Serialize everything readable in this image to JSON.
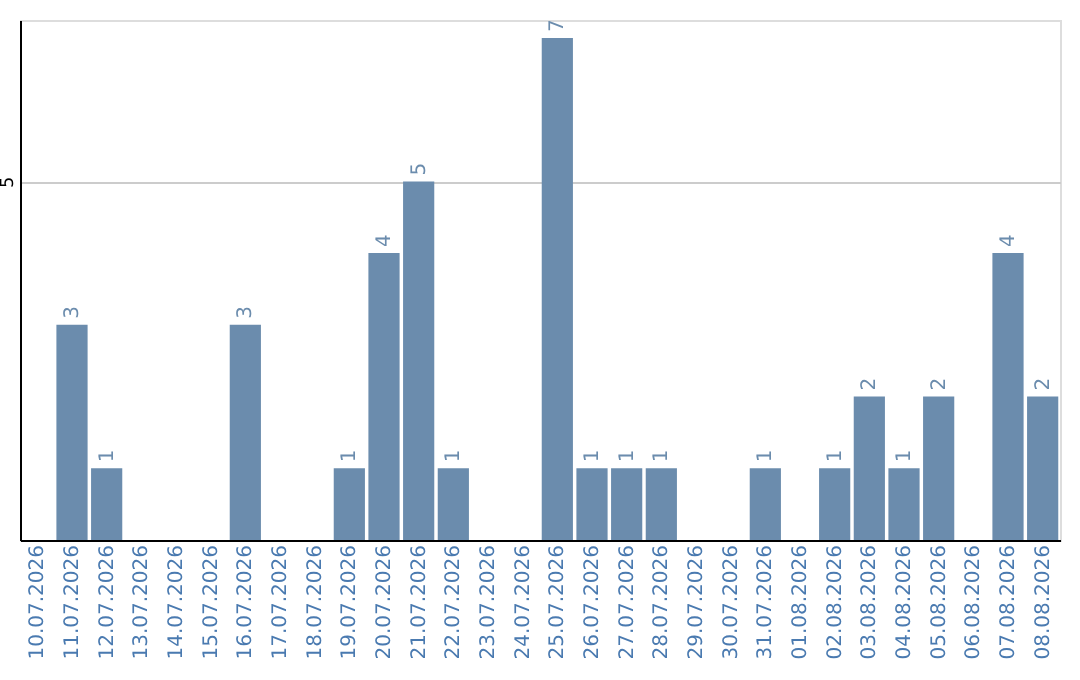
{
  "chart_data": {
    "type": "bar",
    "categories": [
      "10.07.2026",
      "11.07.2026",
      "12.07.2026",
      "13.07.2026",
      "14.07.2026",
      "15.07.2026",
      "16.07.2026",
      "17.07.2026",
      "18.07.2026",
      "19.07.2026",
      "20.07.2026",
      "21.07.2026",
      "22.07.2026",
      "23.07.2026",
      "24.07.2026",
      "25.07.2026",
      "26.07.2026",
      "27.07.2026",
      "28.07.2026",
      "29.07.2026",
      "30.07.2026",
      "31.07.2026",
      "01.08.2026",
      "02.08.2026",
      "03.08.2026",
      "04.08.2026",
      "05.08.2026",
      "06.08.2026",
      "07.08.2026",
      "08.08.2026"
    ],
    "values": [
      0,
      3,
      1,
      0,
      0,
      0,
      3,
      0,
      0,
      1,
      4,
      5,
      1,
      0,
      0,
      7,
      1,
      1,
      1,
      0,
      0,
      1,
      0,
      1,
      2,
      1,
      2,
      0,
      4,
      2
    ],
    "value_labels": [
      null,
      "3",
      "1",
      null,
      null,
      null,
      "3",
      null,
      null,
      "1",
      "4",
      "5",
      "1",
      null,
      null,
      "7",
      "1",
      "1",
      "1",
      null,
      null,
      "1",
      null,
      "1",
      "2",
      "1",
      "2",
      null,
      "4",
      "2"
    ],
    "color": "#6b8cad",
    "ylim": [
      0,
      7.25
    ],
    "yticks": [
      5
    ],
    "grid": "y"
  }
}
